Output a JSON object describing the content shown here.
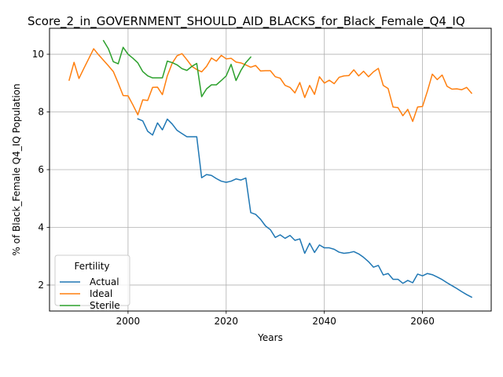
{
  "chart_data": {
    "type": "line",
    "title": "Score_2_in_GOVERNMENT_SHOULD_AID_BLACKS_for_Black_Female_Q4_IQ",
    "xlabel": "Years",
    "ylabel": "% of Black_Female Q4_IQ Population",
    "xlim": [
      1984,
      2074
    ],
    "ylim": [
      1.1,
      10.9
    ],
    "xticks": [
      2000,
      2020,
      2040,
      2060
    ],
    "yticks": [
      2,
      4,
      6,
      8,
      10
    ],
    "grid": true,
    "legend": {
      "title": "Fertility",
      "position": "lower-left"
    },
    "series": [
      {
        "name": "Actual",
        "color": "#1f77b4",
        "x": [
          2002,
          2003,
          2004,
          2005,
          2006,
          2007,
          2008,
          2009,
          2010,
          2011,
          2012,
          2013,
          2014,
          2015,
          2016,
          2017,
          2018,
          2019,
          2020,
          2021,
          2022,
          2023,
          2024,
          2025,
          2026,
          2027,
          2028,
          2029,
          2030,
          2031,
          2032,
          2033,
          2034,
          2035,
          2036,
          2037,
          2038,
          2039,
          2040,
          2041,
          2042,
          2043,
          2044,
          2045,
          2046,
          2047,
          2048,
          2049,
          2050,
          2051,
          2052,
          2053,
          2054,
          2055,
          2056,
          2057,
          2058,
          2059,
          2060,
          2061,
          2062,
          2063,
          2064,
          2065,
          2066,
          2067,
          2068,
          2069,
          2070
        ],
        "y": [
          7.76,
          7.69,
          7.33,
          7.2,
          7.62,
          7.38,
          7.75,
          7.58,
          7.36,
          7.25,
          7.14,
          7.14,
          7.14,
          5.72,
          5.83,
          5.8,
          5.69,
          5.6,
          5.56,
          5.6,
          5.68,
          5.64,
          5.71,
          4.51,
          4.45,
          4.28,
          4.05,
          3.92,
          3.65,
          3.74,
          3.62,
          3.72,
          3.55,
          3.6,
          3.1,
          3.45,
          3.13,
          3.39,
          3.29,
          3.29,
          3.24,
          3.14,
          3.1,
          3.12,
          3.16,
          3.08,
          2.96,
          2.81,
          2.62,
          2.68,
          2.35,
          2.4,
          2.2,
          2.2,
          2.06,
          2.16,
          2.08,
          2.38,
          2.32,
          2.4,
          2.36,
          2.28,
          2.19,
          2.08,
          1.98,
          1.88,
          1.77,
          1.67,
          1.58
        ]
      },
      {
        "name": "Ideal",
        "color": "#ff7f0e",
        "x": [
          1988,
          1989,
          1990,
          1991,
          1992,
          1993,
          1994,
          1995,
          1996,
          1997,
          1998,
          1999,
          2000,
          2001,
          2002,
          2003,
          2004,
          2005,
          2006,
          2007,
          2008,
          2009,
          2010,
          2011,
          2012,
          2013,
          2014,
          2015,
          2016,
          2017,
          2018,
          2019,
          2020,
          2021,
          2022,
          2023,
          2024,
          2025,
          2026,
          2027,
          2028,
          2029,
          2030,
          2031,
          2032,
          2033,
          2034,
          2035,
          2036,
          2037,
          2038,
          2039,
          2040,
          2041,
          2042,
          2043,
          2044,
          2045,
          2046,
          2047,
          2048,
          2049,
          2050,
          2051,
          2052,
          2053,
          2054,
          2055,
          2056,
          2057,
          2058,
          2059,
          2060,
          2061,
          2062,
          2063,
          2064,
          2065,
          2066,
          2067,
          2068,
          2069,
          2070
        ],
        "y": [
          9.1,
          9.72,
          9.16,
          9.51,
          9.85,
          10.19,
          9.98,
          9.79,
          9.6,
          9.4,
          9.0,
          8.57,
          8.56,
          8.24,
          7.9,
          8.42,
          8.4,
          8.85,
          8.86,
          8.6,
          9.25,
          9.69,
          9.95,
          10.02,
          9.81,
          9.58,
          9.47,
          9.39,
          9.58,
          9.87,
          9.76,
          9.96,
          9.84,
          9.86,
          9.73,
          9.7,
          9.63,
          9.55,
          9.61,
          9.42,
          9.43,
          9.43,
          9.22,
          9.17,
          8.92,
          8.85,
          8.66,
          9.02,
          8.5,
          8.92,
          8.61,
          9.22,
          9.0,
          9.1,
          8.98,
          9.2,
          9.25,
          9.26,
          9.46,
          9.25,
          9.41,
          9.22,
          9.39,
          9.51,
          8.92,
          8.81,
          8.17,
          8.15,
          7.87,
          8.09,
          7.67,
          8.17,
          8.19,
          8.72,
          9.31,
          9.12,
          9.28,
          8.89,
          8.79,
          8.8,
          8.77,
          8.85,
          8.65
        ]
      },
      {
        "name": "Sterile",
        "color": "#2ca02c",
        "x": [
          1995,
          1996,
          1997,
          1998,
          1999,
          2000,
          2001,
          2002,
          2003,
          2004,
          2005,
          2006,
          2007,
          2008,
          2009,
          2010,
          2011,
          2012,
          2013,
          2014,
          2015,
          2016,
          2017,
          2018,
          2019,
          2020,
          2021,
          2022,
          2023,
          2024,
          2025
        ],
        "y": [
          10.47,
          10.19,
          9.74,
          9.67,
          10.24,
          10.0,
          9.86,
          9.7,
          9.4,
          9.25,
          9.18,
          9.18,
          9.18,
          9.76,
          9.71,
          9.63,
          9.5,
          9.44,
          9.58,
          9.68,
          8.53,
          8.8,
          8.94,
          8.94,
          9.09,
          9.25,
          9.65,
          9.09,
          9.44,
          9.71,
          9.9
        ]
      }
    ]
  }
}
